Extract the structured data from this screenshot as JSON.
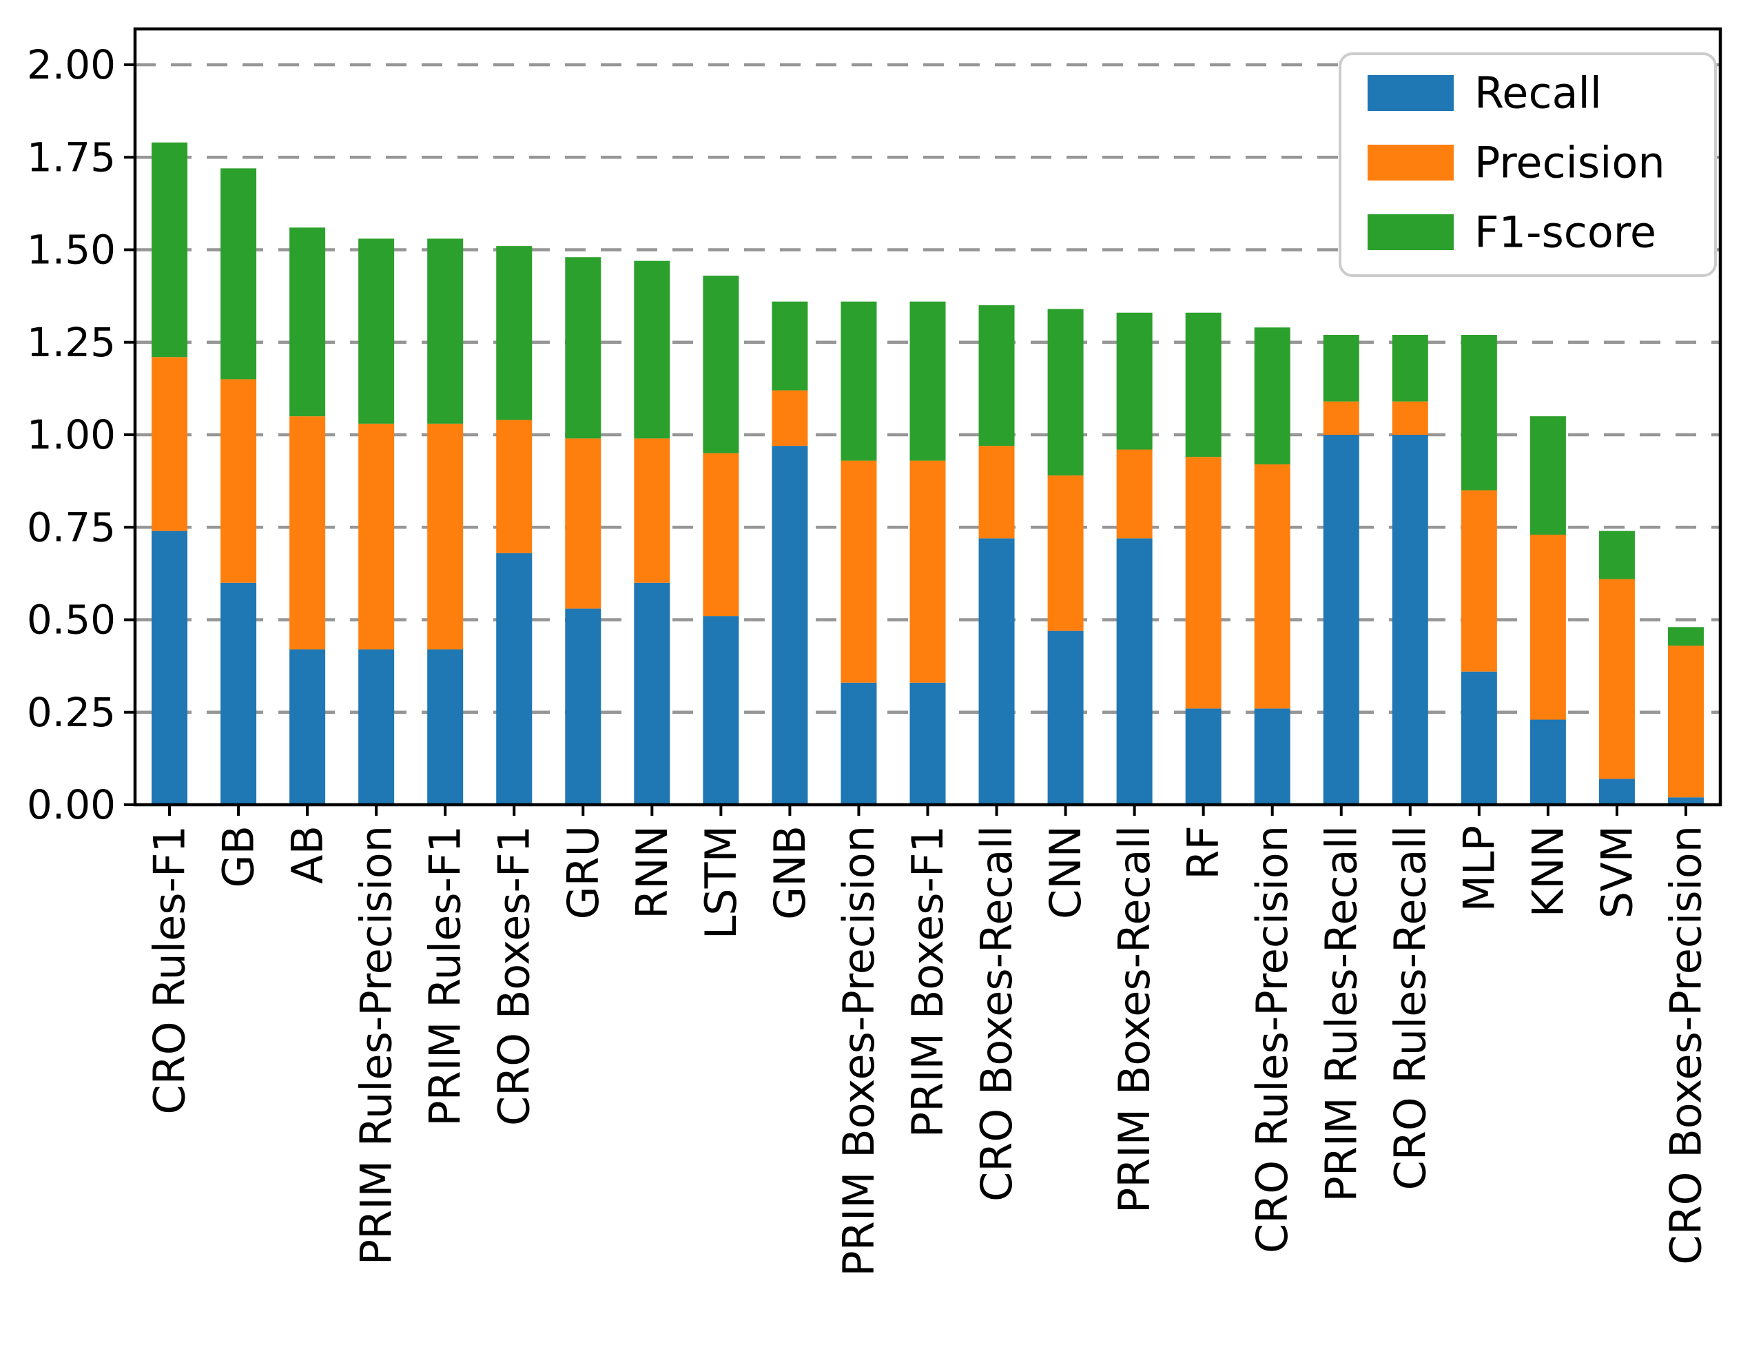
{
  "chart_data": {
    "type": "bar",
    "stacked": true,
    "orientation": "vertical",
    "title": "",
    "xlabel": "",
    "ylabel": "",
    "categories": [
      "CRO Rules-F1",
      "GB",
      "AB",
      "PRIM Rules-Precision",
      "PRIM Rules-F1",
      "CRO Boxes-F1",
      "GRU",
      "RNN",
      "LSTM",
      "GNB",
      "PRIM Boxes-Precision",
      "PRIM Boxes-F1",
      "CRO Boxes-Recall",
      "CNN",
      "PRIM Boxes-Recall",
      "RF",
      "CRO Rules-Precision",
      "PRIM Rules-Recall",
      "CRO Rules-Recall",
      "MLP",
      "KNN",
      "SVM",
      "CRO Boxes-Precision"
    ],
    "series": [
      {
        "name": "Recall",
        "color": "#1f77b4",
        "values": [
          0.74,
          0.6,
          0.42,
          0.42,
          0.42,
          0.68,
          0.53,
          0.6,
          0.51,
          0.97,
          0.33,
          0.33,
          0.72,
          0.47,
          0.72,
          0.26,
          0.26,
          1.0,
          1.0,
          0.36,
          0.23,
          0.07,
          0.02
        ]
      },
      {
        "name": "Precision",
        "color": "#ff7f0e",
        "values": [
          0.47,
          0.55,
          0.63,
          0.61,
          0.61,
          0.36,
          0.46,
          0.39,
          0.44,
          0.15,
          0.6,
          0.6,
          0.25,
          0.42,
          0.24,
          0.68,
          0.66,
          0.09,
          0.09,
          0.49,
          0.5,
          0.54,
          0.41
        ]
      },
      {
        "name": "F1-score",
        "color": "#2ca02c",
        "values": [
          0.58,
          0.57,
          0.51,
          0.5,
          0.5,
          0.47,
          0.49,
          0.48,
          0.48,
          0.24,
          0.43,
          0.43,
          0.38,
          0.45,
          0.37,
          0.39,
          0.37,
          0.18,
          0.18,
          0.42,
          0.32,
          0.13,
          0.05
        ]
      }
    ],
    "stack_totals": [
      1.79,
      1.72,
      1.56,
      1.53,
      1.53,
      1.51,
      1.48,
      1.47,
      1.43,
      1.36,
      1.36,
      1.36,
      1.35,
      1.34,
      1.33,
      1.33,
      1.29,
      1.27,
      1.27,
      1.27,
      1.05,
      0.74,
      0.48
    ],
    "ylim": [
      0.0,
      2.1
    ],
    "yticks": [
      {
        "value": 0.0,
        "label": "0.00"
      },
      {
        "value": 0.25,
        "label": "0.25"
      },
      {
        "value": 0.5,
        "label": "0.50"
      },
      {
        "value": 0.75,
        "label": "0.75"
      },
      {
        "value": 1.0,
        "label": "1.00"
      },
      {
        "value": 1.25,
        "label": "1.25"
      },
      {
        "value": 1.5,
        "label": "1.50"
      },
      {
        "value": 1.75,
        "label": "1.75"
      },
      {
        "value": 2.0,
        "label": "2.00"
      }
    ],
    "grid": {
      "axis": "y",
      "style": "dashed",
      "color": "#969696"
    },
    "legend": {
      "position": "upper right",
      "entries": [
        {
          "label": "Recall",
          "color": "#1f77b4"
        },
        {
          "label": "Precision",
          "color": "#ff7f0e"
        },
        {
          "label": "F1-score",
          "color": "#2ca02c"
        }
      ]
    },
    "x_tick_rotation_deg": 90
  },
  "style": {
    "background": "#ffffff",
    "spine_color": "#000000",
    "grid_color": "#969696",
    "legend_border_color": "#cccccc",
    "tick_label_color": "#000000"
  }
}
